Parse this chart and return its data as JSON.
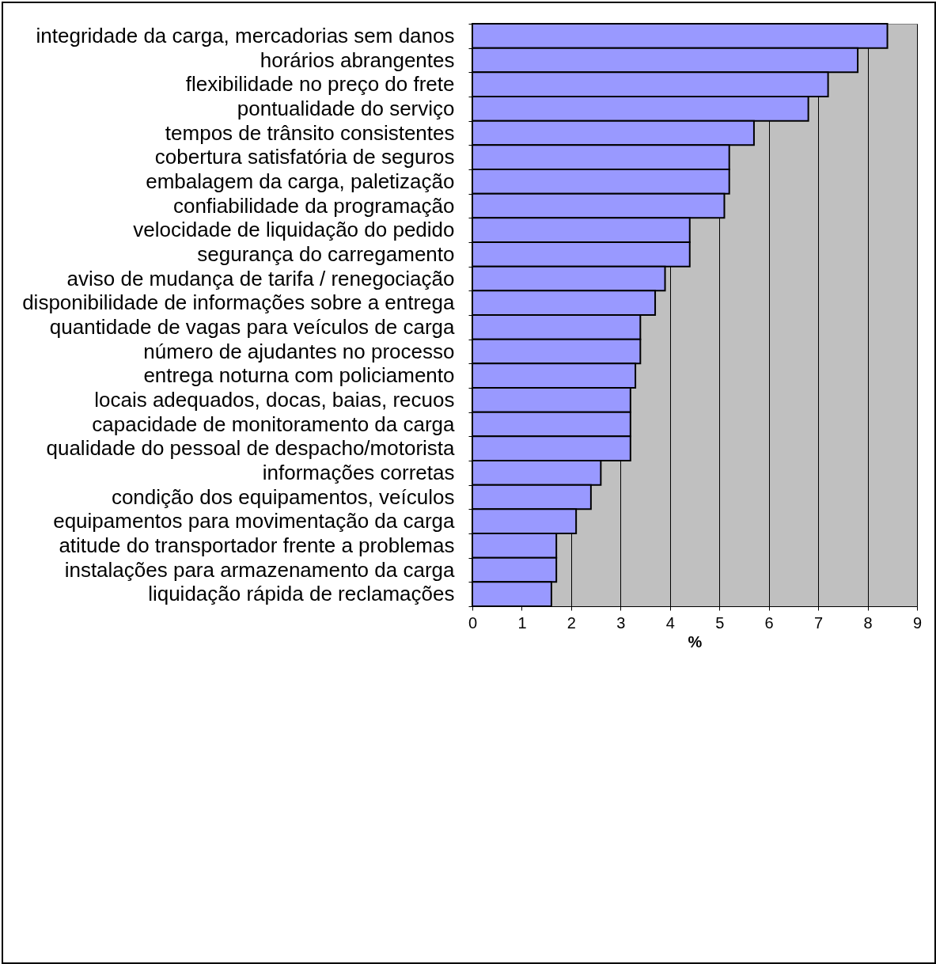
{
  "chart_data": {
    "type": "bar",
    "orientation": "horizontal",
    "xlabel": "%",
    "categories": [
      "integridade da carga, mercadorias sem danos",
      "horários abrangentes",
      "flexibilidade no preço do frete",
      "pontualidade do serviço",
      "tempos de trânsito consistentes",
      "cobertura satisfatória de seguros",
      "embalagem da carga, paletização",
      "confiabilidade da programação",
      "velocidade de liquidação do pedido",
      "segurança do carregamento",
      "aviso de mudança de tarifa / renegociação",
      "disponibilidade de informações sobre a entrega",
      "quantidade de vagas para veículos de carga",
      "número de ajudantes no processo",
      "entrega noturna com policiamento",
      "locais adequados, docas, baias, recuos",
      "capacidade de monitoramento da carga",
      "qualidade do pessoal de despacho/motorista",
      "informações corretas",
      "condição dos equipamentos, veículos",
      "equipamentos para movimentação da carga",
      "atitude do transportador frente a problemas",
      "instalações para armazenamento da carga",
      "liquidação rápida de reclamações"
    ],
    "values": [
      8.4,
      7.8,
      7.2,
      6.8,
      5.7,
      5.2,
      5.2,
      5.1,
      4.4,
      4.4,
      3.9,
      3.7,
      3.4,
      3.4,
      3.3,
      3.2,
      3.2,
      3.2,
      2.6,
      2.4,
      2.1,
      1.7,
      1.7,
      1.6
    ],
    "color": "#9999ff",
    "xlim": [
      0,
      9
    ],
    "xticks": [
      0,
      1,
      2,
      3,
      4,
      5,
      6,
      7,
      8,
      9
    ],
    "grid": "x"
  }
}
